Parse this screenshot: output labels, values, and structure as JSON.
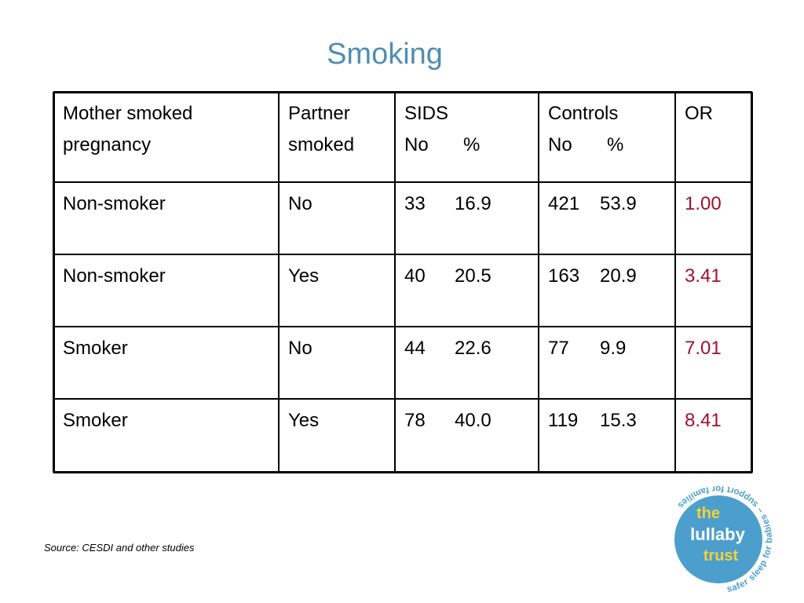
{
  "title": "Smoking",
  "table": {
    "header": [
      {
        "lines": [
          "Mother smoked",
          "pregnancy"
        ]
      },
      {
        "lines": [
          "Partner",
          "smoked"
        ]
      },
      {
        "lines": [
          "SIDS"
        ],
        "sub": [
          "No",
          "%"
        ]
      },
      {
        "lines": [
          "Controls"
        ],
        "sub": [
          "No",
          "%"
        ]
      },
      {
        "lines": [
          "OR"
        ]
      }
    ],
    "rows": [
      {
        "mother": "Non-smoker",
        "partner": "No",
        "sids": [
          "33",
          "16.9"
        ],
        "controls": [
          "421",
          "53.9"
        ],
        "or": "1.00"
      },
      {
        "mother": "Non-smoker",
        "partner": "Yes",
        "sids": [
          "40",
          "20.5"
        ],
        "controls": [
          "163",
          "20.9"
        ],
        "or": "3.41"
      },
      {
        "mother": "Smoker",
        "partner": "No",
        "sids": [
          "44",
          "22.6"
        ],
        "controls": [
          "77",
          "9.9"
        ],
        "or": "7.01"
      },
      {
        "mother": "Smoker",
        "partner": "Yes",
        "sids": [
          "78",
          "40.0"
        ],
        "controls": [
          "119",
          "15.3"
        ],
        "or": "8.41"
      }
    ]
  },
  "source": "Source: CESDI and other studies",
  "logo": {
    "name": [
      "the",
      "lullaby",
      "trust"
    ],
    "tagline": "safer sleep for babies – support for families"
  }
}
